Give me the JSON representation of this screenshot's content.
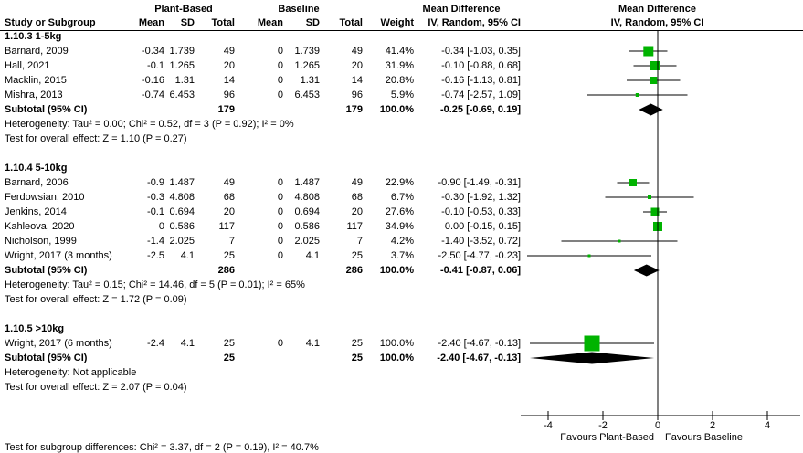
{
  "header": {
    "group1": "Plant-Based",
    "group2": "Baseline",
    "study_col": "Study or Subgroup",
    "mean": "Mean",
    "sd": "SD",
    "total": "Total",
    "weight": "Weight",
    "md_title": "Mean Difference",
    "md_sub": "IV, Random, 95% CI"
  },
  "colors": {
    "square_green": "#00b300",
    "line_black": "#000000",
    "text_black": "#000000",
    "background": "#ffffff"
  },
  "chart_data": {
    "type": "forest",
    "effect_measure": "Mean Difference",
    "method": "IV, Random, 95% CI",
    "x_axis": {
      "ticks": [
        -4,
        -2,
        0,
        2,
        4
      ],
      "zero_line": 0,
      "label_left": "Favours Plant-Based",
      "label_right": "Favours Baseline"
    },
    "subgroups": [
      {
        "label": "1.10.3 1-5kg",
        "studies": [
          {
            "name": "Barnard, 2009",
            "mean1": "-0.34",
            "sd1": "1.739",
            "total1": "49",
            "mean2": "0",
            "sd2": "1.739",
            "total2": "49",
            "weight": "41.4%",
            "ci_text": "-0.34 [-1.03, 0.35]",
            "est": -0.34,
            "lo": -1.03,
            "hi": 0.35,
            "weight_pct": 41.4
          },
          {
            "name": "Hall, 2021",
            "mean1": "-0.1",
            "sd1": "1.265",
            "total1": "20",
            "mean2": "0",
            "sd2": "1.265",
            "total2": "20",
            "weight": "31.9%",
            "ci_text": "-0.10 [-0.88, 0.68]",
            "est": -0.1,
            "lo": -0.88,
            "hi": 0.68,
            "weight_pct": 31.9
          },
          {
            "name": "Macklin, 2015",
            "mean1": "-0.16",
            "sd1": "1.31",
            "total1": "14",
            "mean2": "0",
            "sd2": "1.31",
            "total2": "14",
            "weight": "20.8%",
            "ci_text": "-0.16 [-1.13, 0.81]",
            "est": -0.16,
            "lo": -1.13,
            "hi": 0.81,
            "weight_pct": 20.8
          },
          {
            "name": "Mishra, 2013",
            "mean1": "-0.74",
            "sd1": "6.453",
            "total1": "96",
            "mean2": "0",
            "sd2": "6.453",
            "total2": "96",
            "weight": "5.9%",
            "ci_text": "-0.74 [-2.57, 1.09]",
            "est": -0.74,
            "lo": -2.57,
            "hi": 1.09,
            "weight_pct": 5.9
          }
        ],
        "subtotal": {
          "label": "Subtotal (95% CI)",
          "total1": "179",
          "total2": "179",
          "weight": "100.0%",
          "ci_text": "-0.25 [-0.69, 0.19]",
          "est": -0.25,
          "lo": -0.69,
          "hi": 0.19
        },
        "heterogeneity": "Heterogeneity: Tau² = 0.00; Chi² = 0.52, df = 3 (P = 0.92); I² = 0%",
        "overall_test": "Test for overall effect: Z = 1.10 (P = 0.27)"
      },
      {
        "label": "1.10.4 5-10kg",
        "studies": [
          {
            "name": "Barnard, 2006",
            "mean1": "-0.9",
            "sd1": "1.487",
            "total1": "49",
            "mean2": "0",
            "sd2": "1.487",
            "total2": "49",
            "weight": "22.9%",
            "ci_text": "-0.90 [-1.49, -0.31]",
            "est": -0.9,
            "lo": -1.49,
            "hi": -0.31,
            "weight_pct": 22.9
          },
          {
            "name": "Ferdowsian, 2010",
            "mean1": "-0.3",
            "sd1": "4.808",
            "total1": "68",
            "mean2": "0",
            "sd2": "4.808",
            "total2": "68",
            "weight": "6.7%",
            "ci_text": "-0.30 [-1.92, 1.32]",
            "est": -0.3,
            "lo": -1.92,
            "hi": 1.32,
            "weight_pct": 6.7
          },
          {
            "name": "Jenkins, 2014",
            "mean1": "-0.1",
            "sd1": "0.694",
            "total1": "20",
            "mean2": "0",
            "sd2": "0.694",
            "total2": "20",
            "weight": "27.6%",
            "ci_text": "-0.10 [-0.53, 0.33]",
            "est": -0.1,
            "lo": -0.53,
            "hi": 0.33,
            "weight_pct": 27.6
          },
          {
            "name": "Kahleova, 2020",
            "mean1": "0",
            "sd1": "0.586",
            "total1": "117",
            "mean2": "0",
            "sd2": "0.586",
            "total2": "117",
            "weight": "34.9%",
            "ci_text": "0.00 [-0.15, 0.15]",
            "est": 0.0,
            "lo": -0.15,
            "hi": 0.15,
            "weight_pct": 34.9
          },
          {
            "name": "Nicholson, 1999",
            "mean1": "-1.4",
            "sd1": "2.025",
            "total1": "7",
            "mean2": "0",
            "sd2": "2.025",
            "total2": "7",
            "weight": "4.2%",
            "ci_text": "-1.40 [-3.52, 0.72]",
            "est": -1.4,
            "lo": -3.52,
            "hi": 0.72,
            "weight_pct": 4.2
          },
          {
            "name": "Wright, 2017 (3 months)",
            "mean1": "-2.5",
            "sd1": "4.1",
            "total1": "25",
            "mean2": "0",
            "sd2": "4.1",
            "total2": "25",
            "weight": "3.7%",
            "ci_text": "-2.50 [-4.77, -0.23]",
            "est": -2.5,
            "lo": -4.77,
            "hi": -0.23,
            "weight_pct": 3.7
          }
        ],
        "subtotal": {
          "label": "Subtotal (95% CI)",
          "total1": "286",
          "total2": "286",
          "weight": "100.0%",
          "ci_text": "-0.41 [-0.87, 0.06]",
          "est": -0.41,
          "lo": -0.87,
          "hi": 0.06
        },
        "heterogeneity": "Heterogeneity: Tau² = 0.15; Chi² = 14.46, df = 5 (P = 0.01); I² = 65%",
        "overall_test": "Test for overall effect: Z = 1.72 (P = 0.09)"
      },
      {
        "label": "1.10.5 >10kg",
        "studies": [
          {
            "name": "Wright, 2017 (6 months)",
            "mean1": "-2.4",
            "sd1": "4.1",
            "total1": "25",
            "mean2": "0",
            "sd2": "4.1",
            "total2": "25",
            "weight": "100.0%",
            "ci_text": "-2.40 [-4.67, -0.13]",
            "est": -2.4,
            "lo": -4.67,
            "hi": -0.13,
            "weight_pct": 100.0
          }
        ],
        "subtotal": {
          "label": "Subtotal (95% CI)",
          "total1": "25",
          "total2": "25",
          "weight": "100.0%",
          "ci_text": "-2.40 [-4.67, -0.13]",
          "est": -2.4,
          "lo": -4.67,
          "hi": -0.13
        },
        "heterogeneity": "Heterogeneity: Not applicable",
        "overall_test": "Test for overall effect: Z = 2.07 (P = 0.04)"
      }
    ],
    "footer": "Test for subgroup differences: Chi² = 3.37, df = 2 (P = 0.19), I² = 40.7%"
  }
}
